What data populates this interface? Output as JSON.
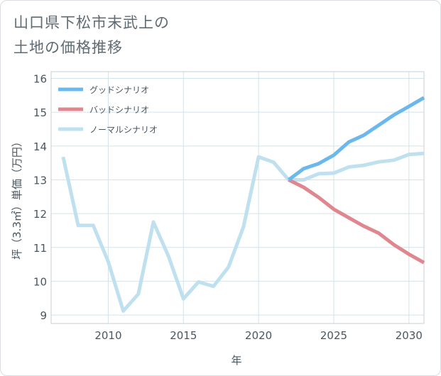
{
  "title_line1": "山口県下松市末武上の",
  "title_line2": "土地の価格推移",
  "chart_data": {
    "type": "line",
    "xlabel": "年",
    "ylabel": "坪（3.3㎡）単価（万円）",
    "xlim": [
      2006.2,
      2031
    ],
    "ylim": [
      8.75,
      16.2
    ],
    "x_ticks": [
      2010,
      2015,
      2020,
      2025,
      2030
    ],
    "y_ticks": [
      9,
      10,
      11,
      12,
      13,
      14,
      15,
      16
    ],
    "grid": true,
    "legend_position": "top-left",
    "series": [
      {
        "name": "グッドシナリオ",
        "color": "#6bb8ec",
        "x": [
          2022,
          2023,
          2024,
          2025,
          2026,
          2027,
          2028,
          2029,
          2030,
          2031
        ],
        "y": [
          13.0,
          13.33,
          13.48,
          13.73,
          14.12,
          14.32,
          14.62,
          14.92,
          15.17,
          15.43
        ]
      },
      {
        "name": "バッドシナリオ",
        "color": "#e0868f",
        "x": [
          2022,
          2023,
          2024,
          2025,
          2026,
          2027,
          2028,
          2029,
          2030,
          2031
        ],
        "y": [
          13.0,
          12.78,
          12.48,
          12.13,
          11.88,
          11.63,
          11.42,
          11.08,
          10.8,
          10.55
        ]
      },
      {
        "name": "ノーマルシナリオ",
        "color": "#bfe0ee",
        "x": [
          2007,
          2008,
          2009,
          2010,
          2011,
          2012,
          2013,
          2014,
          2015,
          2016,
          2017,
          2018,
          2019,
          2020,
          2021,
          2022,
          2023,
          2024,
          2025,
          2026,
          2027,
          2028,
          2029,
          2030,
          2031
        ],
        "y": [
          13.68,
          11.65,
          11.65,
          10.58,
          9.12,
          9.62,
          11.75,
          10.75,
          9.48,
          9.98,
          9.85,
          10.42,
          11.62,
          13.68,
          13.52,
          13.0,
          13.0,
          13.18,
          13.2,
          13.38,
          13.43,
          13.53,
          13.58,
          13.75,
          13.78
        ]
      }
    ]
  }
}
